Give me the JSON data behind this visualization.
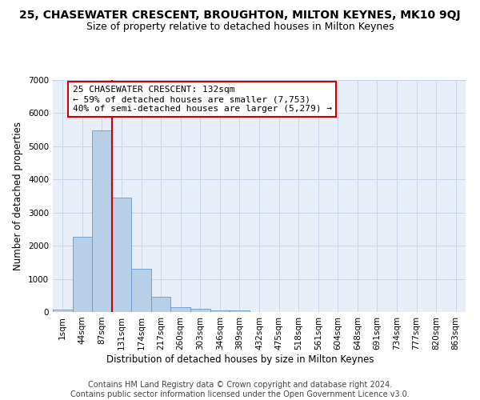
{
  "title": "25, CHASEWATER CRESCENT, BROUGHTON, MILTON KEYNES, MK10 9QJ",
  "subtitle": "Size of property relative to detached houses in Milton Keynes",
  "xlabel": "Distribution of detached houses by size in Milton Keynes",
  "ylabel": "Number of detached properties",
  "footer_line1": "Contains HM Land Registry data © Crown copyright and database right 2024.",
  "footer_line2": "Contains public sector information licensed under the Open Government Licence v3.0.",
  "bar_labels": [
    "1sqm",
    "44sqm",
    "87sqm",
    "131sqm",
    "174sqm",
    "217sqm",
    "260sqm",
    "303sqm",
    "346sqm",
    "389sqm",
    "432sqm",
    "475sqm",
    "518sqm",
    "561sqm",
    "604sqm",
    "648sqm",
    "691sqm",
    "734sqm",
    "777sqm",
    "820sqm",
    "863sqm"
  ],
  "bar_values": [
    75,
    2280,
    5480,
    3440,
    1310,
    460,
    155,
    90,
    55,
    40,
    0,
    0,
    0,
    0,
    0,
    0,
    0,
    0,
    0,
    0,
    0
  ],
  "bar_color": "#b8cfe8",
  "bar_edgecolor": "#6699cc",
  "ylim": [
    0,
    7000
  ],
  "yticks": [
    0,
    1000,
    2000,
    3000,
    4000,
    5000,
    6000,
    7000
  ],
  "grid_color": "#c8d4e8",
  "bg_color": "#e8eef8",
  "annotation_text": "25 CHASEWATER CRESCENT: 132sqm\n← 59% of detached houses are smaller (7,753)\n40% of semi-detached houses are larger (5,279) →",
  "vline_color": "#cc0000",
  "box_edgecolor": "#cc0000",
  "title_fontsize": 10,
  "subtitle_fontsize": 9,
  "ylabel_fontsize": 8.5,
  "xlabel_fontsize": 8.5,
  "tick_fontsize": 7.5,
  "annotation_fontsize": 8,
  "footer_fontsize": 7
}
